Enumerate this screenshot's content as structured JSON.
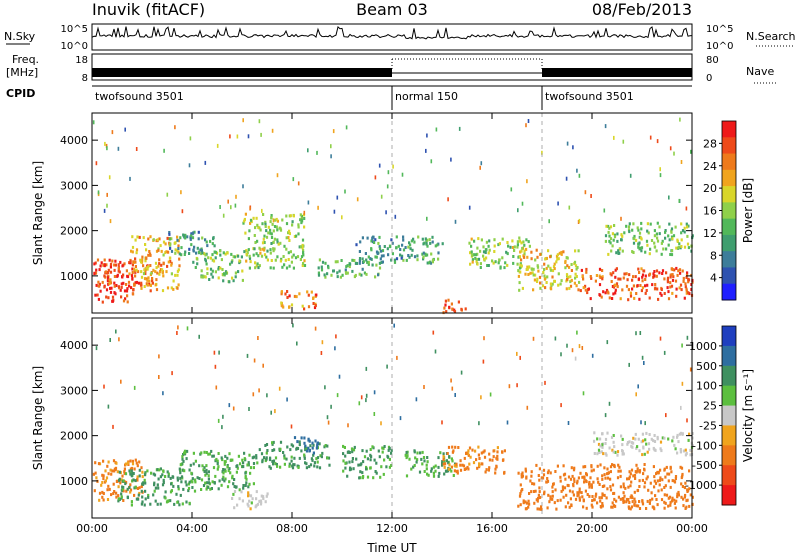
{
  "header": {
    "station": "Inuvik (fitACF)",
    "beam": "Beam 03",
    "date": "08/Feb/2013"
  },
  "strips": {
    "nsky_label": "N.Sky",
    "nsky_ticks": [
      "10^5",
      "10^0"
    ],
    "nsearch_label": "N.Search",
    "nsearch_ticks": [
      "10^5",
      "10^0"
    ],
    "freq_label": "Freq.",
    "freq_unit": "[MHz]",
    "freq_ticks": [
      "18",
      "8"
    ],
    "nave_label": "Nave",
    "nave_ticks": [
      "80",
      "0"
    ],
    "cpid_label": "CPID",
    "cpid_segments": [
      {
        "name": "twofsound 3501",
        "start_hour": 0,
        "end_hour": 12
      },
      {
        "name": "normal 150",
        "start_hour": 12,
        "end_hour": 18
      },
      {
        "name": "twofsound 3501",
        "start_hour": 18,
        "end_hour": 24
      }
    ]
  },
  "chart_data": [
    {
      "type": "heatmap",
      "name": "power",
      "xlabel": "Time UT",
      "ylabel": "Slant Range [km]",
      "x_ticks": [
        "00:00",
        "04:00",
        "08:00",
        "12:00",
        "16:00",
        "20:00",
        "00:00"
      ],
      "x_tick_hours": [
        0,
        4,
        8,
        12,
        16,
        20,
        24
      ],
      "xlim": [
        0,
        24
      ],
      "ylim": [
        180,
        4600
      ],
      "y_ticks": [
        1000,
        2000,
        3000,
        4000
      ],
      "colorbar": {
        "label": "Power [dB]",
        "ticks": [
          "28",
          "24",
          "20",
          "16",
          "12",
          "8",
          "4"
        ],
        "tick_values": [
          28,
          24,
          20,
          16,
          12,
          8,
          4
        ],
        "range": [
          0,
          32
        ],
        "colors": [
          "#1f1fff",
          "#2e52b0",
          "#3d7d9a",
          "#3f9e6f",
          "#52b85a",
          "#8fd04a",
          "#d9d62a",
          "#f0a41e",
          "#ee7a1b",
          "#ee4a1a",
          "#ee1a1a"
        ]
      },
      "regions": [
        {
          "t": [
            0,
            1.6
          ],
          "r": [
            450,
            1400
          ],
          "value": 29
        },
        {
          "t": [
            0.2,
            2.5
          ],
          "r": [
            800,
            1300
          ],
          "value": 27
        },
        {
          "t": [
            1.5,
            3.5
          ],
          "r": [
            700,
            1900
          ],
          "value": 22
        },
        {
          "t": [
            3.0,
            5.0
          ],
          "r": [
            1500,
            2000
          ],
          "value": 10
        },
        {
          "t": [
            4.0,
            6.0
          ],
          "r": [
            900,
            1600
          ],
          "value": 14
        },
        {
          "t": [
            6.0,
            8.5
          ],
          "r": [
            1200,
            2400
          ],
          "value": 16
        },
        {
          "t": [
            7.5,
            9.0
          ],
          "r": [
            300,
            700
          ],
          "value": 25
        },
        {
          "t": [
            9.0,
            11.5
          ],
          "r": [
            1000,
            1400
          ],
          "value": 12
        },
        {
          "t": [
            10.5,
            12.5
          ],
          "r": [
            1300,
            1900
          ],
          "value": 10
        },
        {
          "t": [
            12.5,
            14.0
          ],
          "r": [
            1300,
            1900
          ],
          "value": 12
        },
        {
          "t": [
            14.0,
            15.0
          ],
          "r": [
            200,
            500
          ],
          "value": 29
        },
        {
          "t": [
            15.0,
            17.5
          ],
          "r": [
            1200,
            1900
          ],
          "value": 16
        },
        {
          "t": [
            17.0,
            19.5
          ],
          "r": [
            700,
            1600
          ],
          "value": 20
        },
        {
          "t": [
            19.5,
            24.0
          ],
          "r": [
            500,
            1200
          ],
          "value": 27
        },
        {
          "t": [
            20.5,
            24.0
          ],
          "r": [
            1500,
            2200
          ],
          "value": 14
        }
      ]
    },
    {
      "type": "heatmap",
      "name": "velocity",
      "xlabel": "Time UT",
      "ylabel": "Slant Range [km]",
      "x_ticks": [
        "00:00",
        "04:00",
        "08:00",
        "12:00",
        "16:00",
        "20:00",
        "00:00"
      ],
      "x_tick_hours": [
        0,
        4,
        8,
        12,
        16,
        20,
        24
      ],
      "xlim": [
        0,
        24
      ],
      "ylim": [
        180,
        4600
      ],
      "y_ticks": [
        1000,
        2000,
        3000,
        4000
      ],
      "colorbar": {
        "label": "Velocity [m s⁻¹]",
        "ticks": [
          "1000",
          "500",
          "100",
          "25",
          "-25",
          "-100",
          "-500",
          "-1000"
        ],
        "colors": [
          "#1f3fbf",
          "#2e6ea0",
          "#3f9060",
          "#5cbf3f",
          "#c8c8c8",
          "#f0a41e",
          "#ee7a1b",
          "#ee4a1a",
          "#ee1a1a"
        ]
      },
      "regions": [
        {
          "t": [
            0,
            2.0
          ],
          "r": [
            600,
            1500
          ],
          "value": -150
        },
        {
          "t": [
            1.0,
            4.0
          ],
          "r": [
            500,
            1300
          ],
          "value": 150
        },
        {
          "t": [
            3.5,
            6.5
          ],
          "r": [
            800,
            1700
          ],
          "value": 100
        },
        {
          "t": [
            5.5,
            7.0
          ],
          "r": [
            400,
            800
          ],
          "value": 0
        },
        {
          "t": [
            6.5,
            9.5
          ],
          "r": [
            1300,
            1900
          ],
          "value": 150
        },
        {
          "t": [
            8.0,
            9.0
          ],
          "r": [
            1600,
            2000
          ],
          "value": 800
        },
        {
          "t": [
            10.0,
            12.0
          ],
          "r": [
            1100,
            1800
          ],
          "value": 120
        },
        {
          "t": [
            12.5,
            14.5
          ],
          "r": [
            1100,
            1700
          ],
          "value": 100
        },
        {
          "t": [
            14.0,
            16.5
          ],
          "r": [
            1200,
            1800
          ],
          "value": -150
        },
        {
          "t": [
            17.0,
            24.0
          ],
          "r": [
            400,
            1400
          ],
          "value": -300
        },
        {
          "t": [
            20.0,
            24.0
          ],
          "r": [
            1600,
            2100
          ],
          "value": 0
        }
      ]
    }
  ]
}
